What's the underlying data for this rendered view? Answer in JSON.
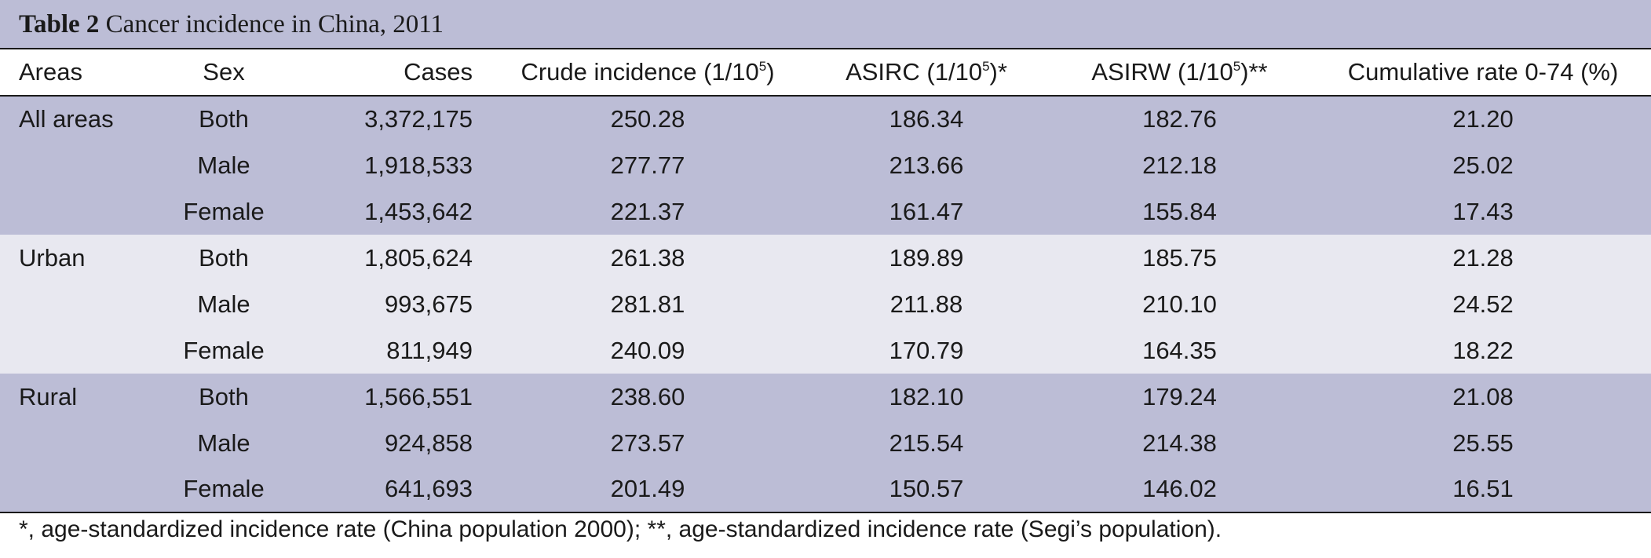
{
  "caption": {
    "label": "Table 2",
    "title": "Cancer incidence in China, 2011"
  },
  "headers": {
    "areas": "Areas",
    "sex": "Sex",
    "cases": "Cases",
    "crude_pre": "Crude incidence (1/10",
    "crude_sup": "5",
    "crude_post": ")",
    "asirc_pre": "ASIRC (1/10",
    "asirc_sup": "5",
    "asirc_post": ")*",
    "asirw_pre": "ASIRW (1/10",
    "asirw_sup": "5",
    "asirw_post": ")**",
    "cumulative": "Cumulative rate 0-74 (%)"
  },
  "groups": [
    {
      "area": "All areas",
      "rows": [
        {
          "sex": "Both",
          "cases": "3,372,175",
          "crude": "250.28",
          "asirc": "186.34",
          "asirw": "182.76",
          "cum": "21.20"
        },
        {
          "sex": "Male",
          "cases": "1,918,533",
          "crude": "277.77",
          "asirc": "213.66",
          "asirw": "212.18",
          "cum": "25.02"
        },
        {
          "sex": "Female",
          "cases": "1,453,642",
          "crude": "221.37",
          "asirc": "161.47",
          "asirw": "155.84",
          "cum": "17.43"
        }
      ]
    },
    {
      "area": "Urban",
      "rows": [
        {
          "sex": "Both",
          "cases": "1,805,624",
          "crude": "261.38",
          "asirc": "189.89",
          "asirw": "185.75",
          "cum": "21.28"
        },
        {
          "sex": "Male",
          "cases": "993,675",
          "crude": "281.81",
          "asirc": "211.88",
          "asirw": "210.10",
          "cum": "24.52"
        },
        {
          "sex": "Female",
          "cases": "811,949",
          "crude": "240.09",
          "asirc": "170.79",
          "asirw": "164.35",
          "cum": "18.22"
        }
      ]
    },
    {
      "area": "Rural",
      "rows": [
        {
          "sex": "Both",
          "cases": "1,566,551",
          "crude": "238.60",
          "asirc": "182.10",
          "asirw": "179.24",
          "cum": "21.08"
        },
        {
          "sex": "Male",
          "cases": "924,858",
          "crude": "273.57",
          "asirc": "215.54",
          "asirw": "214.38",
          "cum": "25.55"
        },
        {
          "sex": "Female",
          "cases": "641,693",
          "crude": "201.49",
          "asirc": "150.57",
          "asirw": "146.02",
          "cum": "16.51"
        }
      ]
    }
  ],
  "footnote": "*, age-standardized incidence rate (China population 2000); **, age-standardized incidence rate (Segi’s population).",
  "colors": {
    "band_dark": "#bcbdd6",
    "band_light": "#e8e8f0",
    "rule": "#1a1a1a"
  }
}
